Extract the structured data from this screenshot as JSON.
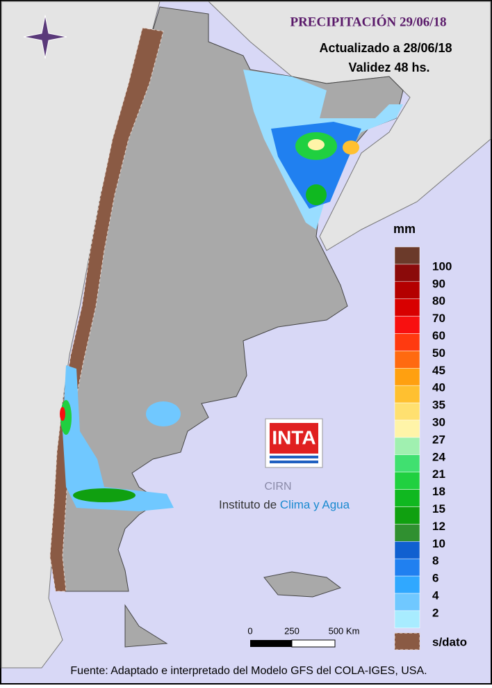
{
  "header": {
    "title": "PRECIPITACIÓN 29/06/18",
    "updated": "Actualizado a 28/06/18",
    "validity": "Validez 48 hs."
  },
  "legend": {
    "unit": "mm",
    "top_color": "#6b3a2a",
    "items": [
      {
        "label": "100",
        "color": "#8b0a0a"
      },
      {
        "label": "90",
        "color": "#b40000"
      },
      {
        "label": "80",
        "color": "#d80000"
      },
      {
        "label": "70",
        "color": "#f81010"
      },
      {
        "label": "60",
        "color": "#ff3a10"
      },
      {
        "label": "50",
        "color": "#ff6a10"
      },
      {
        "label": "45",
        "color": "#ffa010"
      },
      {
        "label": "40",
        "color": "#ffc030"
      },
      {
        "label": "35",
        "color": "#ffe070"
      },
      {
        "label": "30",
        "color": "#fff4a8"
      },
      {
        "label": "27",
        "color": "#a0f0b0"
      },
      {
        "label": "24",
        "color": "#40e070"
      },
      {
        "label": "21",
        "color": "#20d040"
      },
      {
        "label": "18",
        "color": "#10b820"
      },
      {
        "label": "15",
        "color": "#10a010"
      },
      {
        "label": "12",
        "color": "#309030"
      },
      {
        "label": "10",
        "color": "#1060d0"
      },
      {
        "label": "8",
        "color": "#2080f0"
      },
      {
        "label": "6",
        "color": "#30a8ff"
      },
      {
        "label": "4",
        "color": "#70c8ff"
      },
      {
        "label": "2",
        "color": "#a8ecff"
      }
    ],
    "no_data": "s/dato"
  },
  "scale": {
    "labels": [
      "0",
      "250",
      "500 Km"
    ]
  },
  "logo": {
    "name": "INTA",
    "center": "CIRN",
    "institute": "Instituto de",
    "institute_highlight": "Clima y Agua"
  },
  "footer": "Fuente: Adaptado e interpretado del Modelo GFS del COLA-IGES, USA."
}
